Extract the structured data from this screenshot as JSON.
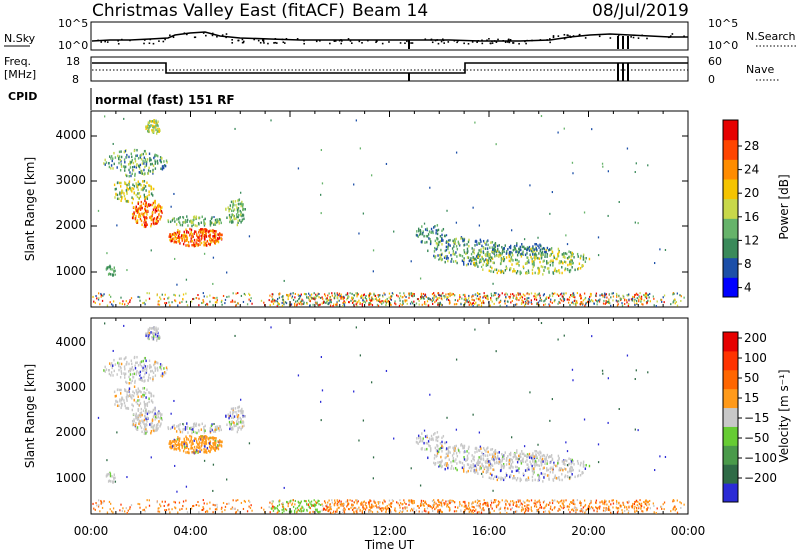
{
  "header": {
    "title": "Christmas Valley East (fitACF)",
    "beam": "Beam 14",
    "date": "08/Jul/2019"
  },
  "nsky_panel": {
    "left_label": "N.Sky",
    "right_label": "N.Search",
    "ticks_left": [
      "10^5",
      "10^0"
    ],
    "ticks_right": [
      "10^5",
      "10^0"
    ]
  },
  "freq_panel": {
    "left_label_1": "Freq.",
    "left_label_2": "[MHz]",
    "right_label": "Nave",
    "ticks_left": [
      "18",
      "8"
    ],
    "ticks_right": [
      "60",
      "0"
    ]
  },
  "cpid": {
    "label": "CPID",
    "mode_text": "normal (fast) 151 RF"
  },
  "colors": {
    "power_scale": [
      "#0000ff",
      "#1c4fa8",
      "#3a8a5a",
      "#66b36a",
      "#c8d84a",
      "#f5c400",
      "#ff8c00",
      "#ff4500",
      "#e60000"
    ],
    "velocity_scale": [
      "#2b2bd6",
      "#2f6b46",
      "#4a9a4a",
      "#66cc33",
      "#c8c8c8",
      "#ff9a1a",
      "#ff6600",
      "#ff3300",
      "#e60000"
    ]
  },
  "chart_data": [
    {
      "type": "heatmap",
      "ylabel": "Slant Range [km]",
      "y_ticks": [
        "4000",
        "3000",
        "2000",
        "1000"
      ],
      "ylim": [
        180,
        4500
      ],
      "colorbar_label": "Power [dB]",
      "colorbar_ticks": [
        "28",
        "24",
        "20",
        "16",
        "12",
        "8",
        "4"
      ],
      "colorbar_range": [
        0,
        30
      ]
    },
    {
      "type": "heatmap",
      "ylabel": "Slant Range [km]",
      "y_ticks": [
        "4000",
        "3000",
        "2000",
        "1000"
      ],
      "ylim": [
        180,
        4500
      ],
      "colorbar_label": "Velocity [m s⁻¹]",
      "colorbar_ticks": [
        "200",
        "100",
        "50",
        "15",
        "−15",
        "−50",
        "−100",
        "−200"
      ]
    }
  ],
  "x_axis": {
    "ticks": [
      "00:00",
      "04:00",
      "08:00",
      "12:00",
      "16:00",
      "20:00",
      "00:00"
    ],
    "label": "Time UT"
  }
}
